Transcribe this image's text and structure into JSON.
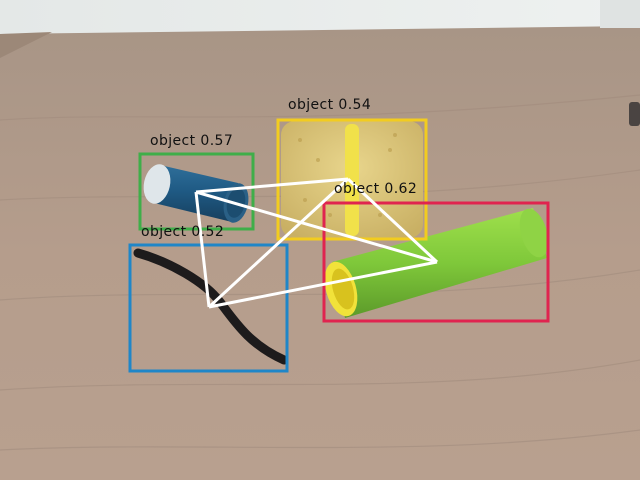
{
  "detections": [
    {
      "label": "object 0.57",
      "color": "#3fae49"
    },
    {
      "label": "object 0.54",
      "color": "#f2cc1f"
    },
    {
      "label": "object 0.62",
      "color": "#e0244f"
    },
    {
      "label": "object 0.52",
      "color": "#1f86c8"
    }
  ],
  "objects": [
    "blue-cylinder",
    "yellow-sponge",
    "green-tube",
    "black-cable"
  ],
  "overlay": {
    "line_color": "#ffffff"
  }
}
